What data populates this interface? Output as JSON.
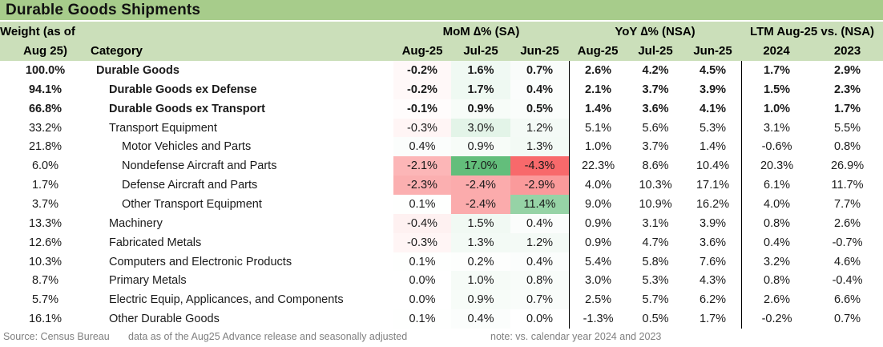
{
  "title": "Durable Goods Shipments",
  "columns": {
    "weight_header_line1": "Weight (as of",
    "weight_header_line2": "Aug 25)",
    "category_header": "Category",
    "groups": [
      {
        "label": "MoM ∆% (SA)",
        "subcols": [
          "Aug-25",
          "Jul-25",
          "Jun-25"
        ]
      },
      {
        "label": "YoY ∆% (NSA)",
        "subcols": [
          "Aug-25",
          "Jul-25",
          "Jun-25"
        ]
      },
      {
        "label": "LTM Aug-25 vs. (NSA)",
        "subcols": [
          "2024",
          "2023"
        ]
      }
    ]
  },
  "rows": [
    {
      "weight": "100.0%",
      "category": "Durable Goods",
      "indent": 0,
      "bold": true,
      "mom": [
        "-0.2%",
        "1.6%",
        "0.7%"
      ],
      "yoy": [
        "2.6%",
        "4.2%",
        "4.5%"
      ],
      "ltm": [
        "1.7%",
        "2.9%"
      ]
    },
    {
      "weight": "94.1%",
      "category": "Durable Goods ex Defense",
      "indent": 1,
      "bold": true,
      "mom": [
        "-0.2%",
        "1.7%",
        "0.4%"
      ],
      "yoy": [
        "2.1%",
        "3.7%",
        "3.9%"
      ],
      "ltm": [
        "1.5%",
        "2.3%"
      ]
    },
    {
      "weight": "66.8%",
      "category": "Durable Goods ex Transport",
      "indent": 1,
      "bold": true,
      "mom": [
        "-0.1%",
        "0.9%",
        "0.5%"
      ],
      "yoy": [
        "1.4%",
        "3.6%",
        "4.1%"
      ],
      "ltm": [
        "1.0%",
        "1.7%"
      ]
    },
    {
      "weight": "33.2%",
      "category": "Transport Equipment",
      "indent": 1,
      "bold": false,
      "mom": [
        "-0.3%",
        "3.0%",
        "1.2%"
      ],
      "yoy": [
        "5.1%",
        "5.6%",
        "5.3%"
      ],
      "ltm": [
        "3.1%",
        "5.5%"
      ]
    },
    {
      "weight": "21.8%",
      "category": "Motor Vehicles and Parts",
      "indent": 2,
      "bold": false,
      "mom": [
        "0.4%",
        "0.9%",
        "1.3%"
      ],
      "yoy": [
        "1.0%",
        "3.7%",
        "1.4%"
      ],
      "ltm": [
        "-0.6%",
        "0.8%"
      ]
    },
    {
      "weight": "6.0%",
      "category": "Nondefense Aircraft and Parts",
      "indent": 2,
      "bold": false,
      "mom": [
        "-2.1%",
        "17.0%",
        "-4.3%"
      ],
      "yoy": [
        "22.3%",
        "8.6%",
        "10.4%"
      ],
      "ltm": [
        "20.3%",
        "26.9%"
      ]
    },
    {
      "weight": "1.7%",
      "category": "Defense Aircraft and Parts",
      "indent": 2,
      "bold": false,
      "mom": [
        "-2.3%",
        "-2.4%",
        "-2.9%"
      ],
      "yoy": [
        "4.0%",
        "10.3%",
        "17.1%"
      ],
      "ltm": [
        "6.1%",
        "11.7%"
      ]
    },
    {
      "weight": "3.7%",
      "category": "Other Transport Equipment",
      "indent": 2,
      "bold": false,
      "mom": [
        "0.1%",
        "-2.4%",
        "11.4%"
      ],
      "yoy": [
        "9.0%",
        "10.9%",
        "16.2%"
      ],
      "ltm": [
        "4.0%",
        "7.7%"
      ]
    },
    {
      "weight": "13.3%",
      "category": "Machinery",
      "indent": 1,
      "bold": false,
      "mom": [
        "-0.4%",
        "1.5%",
        "0.4%"
      ],
      "yoy": [
        "0.9%",
        "3.1%",
        "3.9%"
      ],
      "ltm": [
        "0.8%",
        "2.6%"
      ]
    },
    {
      "weight": "12.6%",
      "category": "Fabricated Metals",
      "indent": 1,
      "bold": false,
      "mom": [
        "-0.3%",
        "1.3%",
        "1.2%"
      ],
      "yoy": [
        "0.9%",
        "4.7%",
        "3.6%"
      ],
      "ltm": [
        "0.4%",
        "-0.7%"
      ]
    },
    {
      "weight": "10.3%",
      "category": "Computers and Electronic Products",
      "indent": 1,
      "bold": false,
      "mom": [
        "0.1%",
        "0.2%",
        "0.4%"
      ],
      "yoy": [
        "5.4%",
        "5.8%",
        "7.6%"
      ],
      "ltm": [
        "3.2%",
        "4.6%"
      ]
    },
    {
      "weight": "8.7%",
      "category": "Primary Metals",
      "indent": 1,
      "bold": false,
      "mom": [
        "0.0%",
        "1.0%",
        "0.8%"
      ],
      "yoy": [
        "3.0%",
        "5.3%",
        "4.3%"
      ],
      "ltm": [
        "0.8%",
        "-0.4%"
      ]
    },
    {
      "weight": "5.7%",
      "category": "Electric Equip, Applicances, and Components",
      "indent": 1,
      "bold": false,
      "mom": [
        "0.0%",
        "0.9%",
        "0.7%"
      ],
      "yoy": [
        "2.5%",
        "5.7%",
        "6.2%"
      ],
      "ltm": [
        "2.6%",
        "6.6%"
      ]
    },
    {
      "weight": "16.1%",
      "category": "Other Durable Goods",
      "indent": 1,
      "bold": false,
      "mom": [
        "0.1%",
        "0.4%",
        "0.0%"
      ],
      "yoy": [
        "-1.3%",
        "0.5%",
        "1.7%"
      ],
      "ltm": [
        "-0.2%",
        "0.7%"
      ]
    }
  ],
  "footer": {
    "source": "Source: Census Bureau",
    "data_note": "data as of the Aug25 Advance release and seasonally adjusted",
    "note": "note: vs. calendar year 2024 and 2023"
  },
  "colors": {
    "title_bg": "#A7CC8B",
    "header_bg": "#CBDFBA",
    "separator": "#000000",
    "footer_text": "#7F7F7F",
    "heatmap": {
      "min": "#F8696B",
      "mid": "#FFFFFF",
      "max": "#63BE7B",
      "domain": [
        -4.3,
        0,
        17.0
      ]
    }
  },
  "chart_data": {
    "type": "table",
    "title": "Durable Goods Shipments",
    "heatmap_note": "red-white-green 3-color scale applied to the three MoM ∆% (SA) columns, domain -4.3 to 17.0",
    "columns": [
      "Weight (as of Aug 25)",
      "Category",
      "MoM ∆% (SA) Aug-25",
      "MoM ∆% (SA) Jul-25",
      "MoM ∆% (SA) Jun-25",
      "YoY ∆% (NSA) Aug-25",
      "YoY ∆% (NSA) Jul-25",
      "YoY ∆% (NSA) Jun-25",
      "LTM Aug-25 vs. (NSA) 2024",
      "LTM Aug-25 vs. (NSA) 2023"
    ],
    "rows": [
      [
        100.0,
        "Durable Goods",
        -0.2,
        1.6,
        0.7,
        2.6,
        4.2,
        4.5,
        1.7,
        2.9
      ],
      [
        94.1,
        "Durable Goods ex Defense",
        -0.2,
        1.7,
        0.4,
        2.1,
        3.7,
        3.9,
        1.5,
        2.3
      ],
      [
        66.8,
        "Durable Goods ex Transport",
        -0.1,
        0.9,
        0.5,
        1.4,
        3.6,
        4.1,
        1.0,
        1.7
      ],
      [
        33.2,
        "Transport Equipment",
        -0.3,
        3.0,
        1.2,
        5.1,
        5.6,
        5.3,
        3.1,
        5.5
      ],
      [
        21.8,
        "Motor Vehicles and Parts",
        0.4,
        0.9,
        1.3,
        1.0,
        3.7,
        1.4,
        -0.6,
        0.8
      ],
      [
        6.0,
        "Nondefense Aircraft and Parts",
        -2.1,
        17.0,
        -4.3,
        22.3,
        8.6,
        10.4,
        20.3,
        26.9
      ],
      [
        1.7,
        "Defense Aircraft and Parts",
        -2.3,
        -2.4,
        -2.9,
        4.0,
        10.3,
        17.1,
        6.1,
        11.7
      ],
      [
        3.7,
        "Other Transport Equipment",
        0.1,
        -2.4,
        11.4,
        9.0,
        10.9,
        16.2,
        4.0,
        7.7
      ],
      [
        13.3,
        "Machinery",
        -0.4,
        1.5,
        0.4,
        0.9,
        3.1,
        3.9,
        0.8,
        2.6
      ],
      [
        12.6,
        "Fabricated Metals",
        -0.3,
        1.3,
        1.2,
        0.9,
        4.7,
        3.6,
        0.4,
        -0.7
      ],
      [
        10.3,
        "Computers and Electronic Products",
        0.1,
        0.2,
        0.4,
        5.4,
        5.8,
        7.6,
        3.2,
        4.6
      ],
      [
        8.7,
        "Primary Metals",
        0.0,
        1.0,
        0.8,
        3.0,
        5.3,
        4.3,
        0.8,
        -0.4
      ],
      [
        5.7,
        "Electric Equip, Applicances, and Components",
        0.0,
        0.9,
        0.7,
        2.5,
        5.7,
        6.2,
        2.6,
        6.6
      ],
      [
        16.1,
        "Other Durable Goods",
        0.1,
        0.4,
        0.0,
        -1.3,
        0.5,
        1.7,
        -0.2,
        0.7
      ]
    ]
  }
}
